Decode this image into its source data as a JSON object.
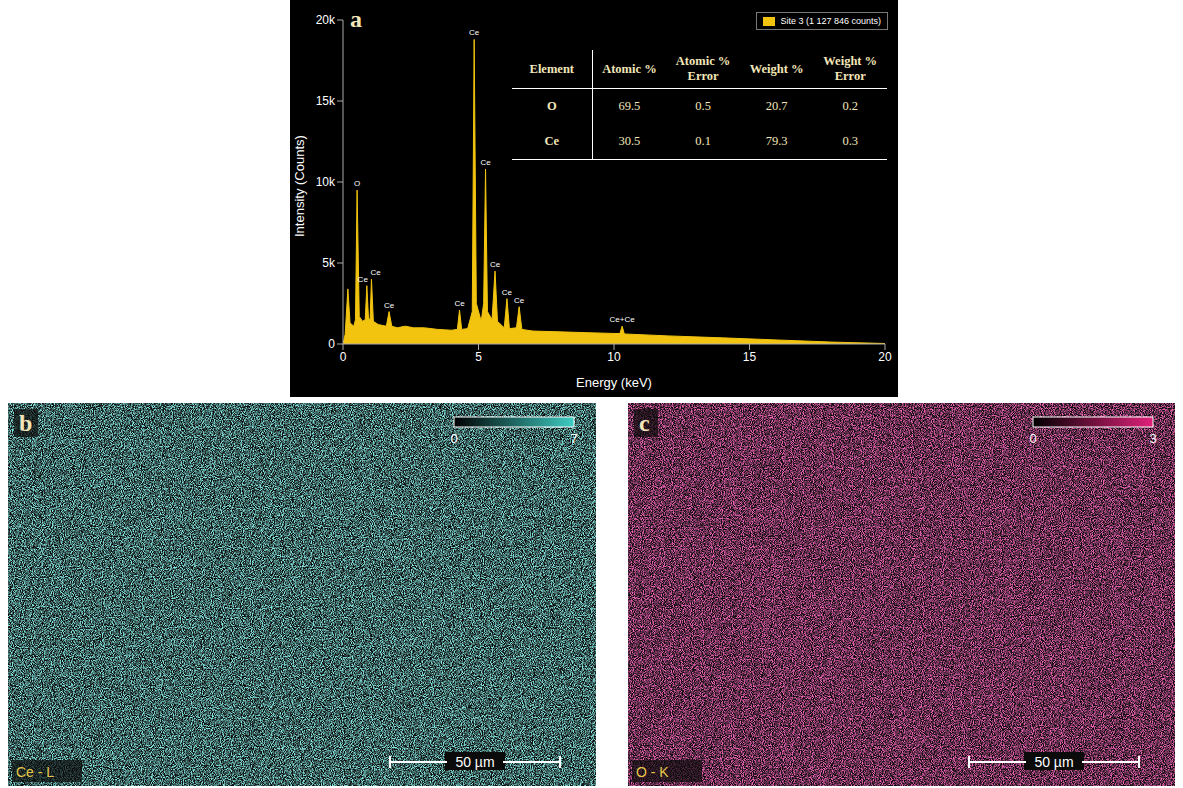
{
  "spectrum_panel": "a",
  "chart_data": {
    "type": "area",
    "x_label": "Energy (keV)",
    "y_label": "Intensity (Counts)",
    "x": [
      0,
      0.08,
      0.18,
      0.26,
      0.4,
      0.46,
      0.52,
      0.6,
      0.72,
      0.82,
      0.88,
      0.94,
      1.0,
      1.05,
      1.12,
      1.3,
      1.6,
      1.7,
      1.8,
      2.0,
      2.3,
      2.6,
      3.0,
      3.5,
      4.0,
      4.22,
      4.3,
      4.38,
      4.6,
      4.77,
      4.84,
      4.92,
      5.1,
      5.19,
      5.26,
      5.33,
      5.5,
      5.61,
      5.7,
      5.95,
      6.05,
      6.14,
      6.4,
      6.5,
      6.6,
      7.0,
      8.0,
      9.0,
      10.0,
      10.22,
      10.3,
      10.38,
      12.0,
      14.0,
      16.0,
      18.0,
      20.0
    ],
    "series": [
      {
        "name": "Site 3 (1 127 846 counts)",
        "color": "#f2c40f",
        "values": [
          0,
          600,
          3400,
          1300,
          1100,
          1500,
          9500,
          1700,
          1400,
          1500,
          3600,
          1600,
          1500,
          4000,
          1400,
          1200,
          1100,
          2000,
          1100,
          1000,
          1100,
          1000,
          1000,
          900,
          850,
          900,
          2100,
          900,
          950,
          2000,
          18800,
          2500,
          1400,
          2500,
          10800,
          2000,
          1500,
          4500,
          1400,
          1000,
          2800,
          950,
          1000,
          2300,
          900,
          800,
          750,
          700,
          650,
          650,
          1100,
          620,
          500,
          380,
          250,
          120,
          30
        ]
      }
    ],
    "xlim": [
      0,
      20
    ],
    "xticks": [
      0,
      5,
      10,
      15,
      20
    ],
    "ylim": [
      0,
      20000
    ],
    "yticks": [
      0,
      {
        "value": 5000,
        "label": "5k"
      },
      {
        "value": 10000,
        "label": "10k"
      },
      {
        "value": 15000,
        "label": "15k"
      },
      {
        "value": 20000,
        "label": "20k"
      }
    ],
    "legend": "upper right",
    "annotations": [
      {
        "x": 0.52,
        "y": 9500,
        "label": "O"
      },
      {
        "x": 0.88,
        "y": 3600,
        "label": "Ce"
      },
      {
        "x": 1.05,
        "y": 4000,
        "label": "Ce"
      },
      {
        "x": 1.7,
        "y": 2000,
        "label": "Ce"
      },
      {
        "x": 4.3,
        "y": 2100,
        "label": "Ce"
      },
      {
        "x": 4.84,
        "y": 18800,
        "label": "Ce"
      },
      {
        "x": 5.26,
        "y": 10800,
        "label": "Ce"
      },
      {
        "x": 5.61,
        "y": 4500,
        "label": "Ce"
      },
      {
        "x": 6.05,
        "y": 2800,
        "label": "Ce"
      },
      {
        "x": 6.5,
        "y": 2300,
        "label": "Ce"
      },
      {
        "x": 10.3,
        "y": 1100,
        "label": "Ce+Ce"
      }
    ]
  },
  "table": {
    "header": [
      "Element",
      "Atomic %",
      "Atomic % Error",
      "Weight %",
      "Weight % Error"
    ],
    "rows": [
      [
        "O",
        69.5,
        0.5,
        20.7,
        0.2
      ],
      [
        "Ce",
        30.5,
        0.1,
        79.3,
        0.3
      ]
    ]
  },
  "maps": [
    {
      "panel": "b",
      "label": "Ce - L",
      "color": "#3ecdc3",
      "colorbar": {
        "range": [
          0,
          7
        ],
        "ticks": [
          0,
          7
        ]
      },
      "scale_bar": "50 µm"
    },
    {
      "panel": "c",
      "label": "O - K",
      "color": "#e0217a",
      "colorbar": {
        "range": [
          0,
          3
        ],
        "ticks": [
          0,
          3
        ]
      },
      "scale_bar": "50 µm"
    }
  ]
}
